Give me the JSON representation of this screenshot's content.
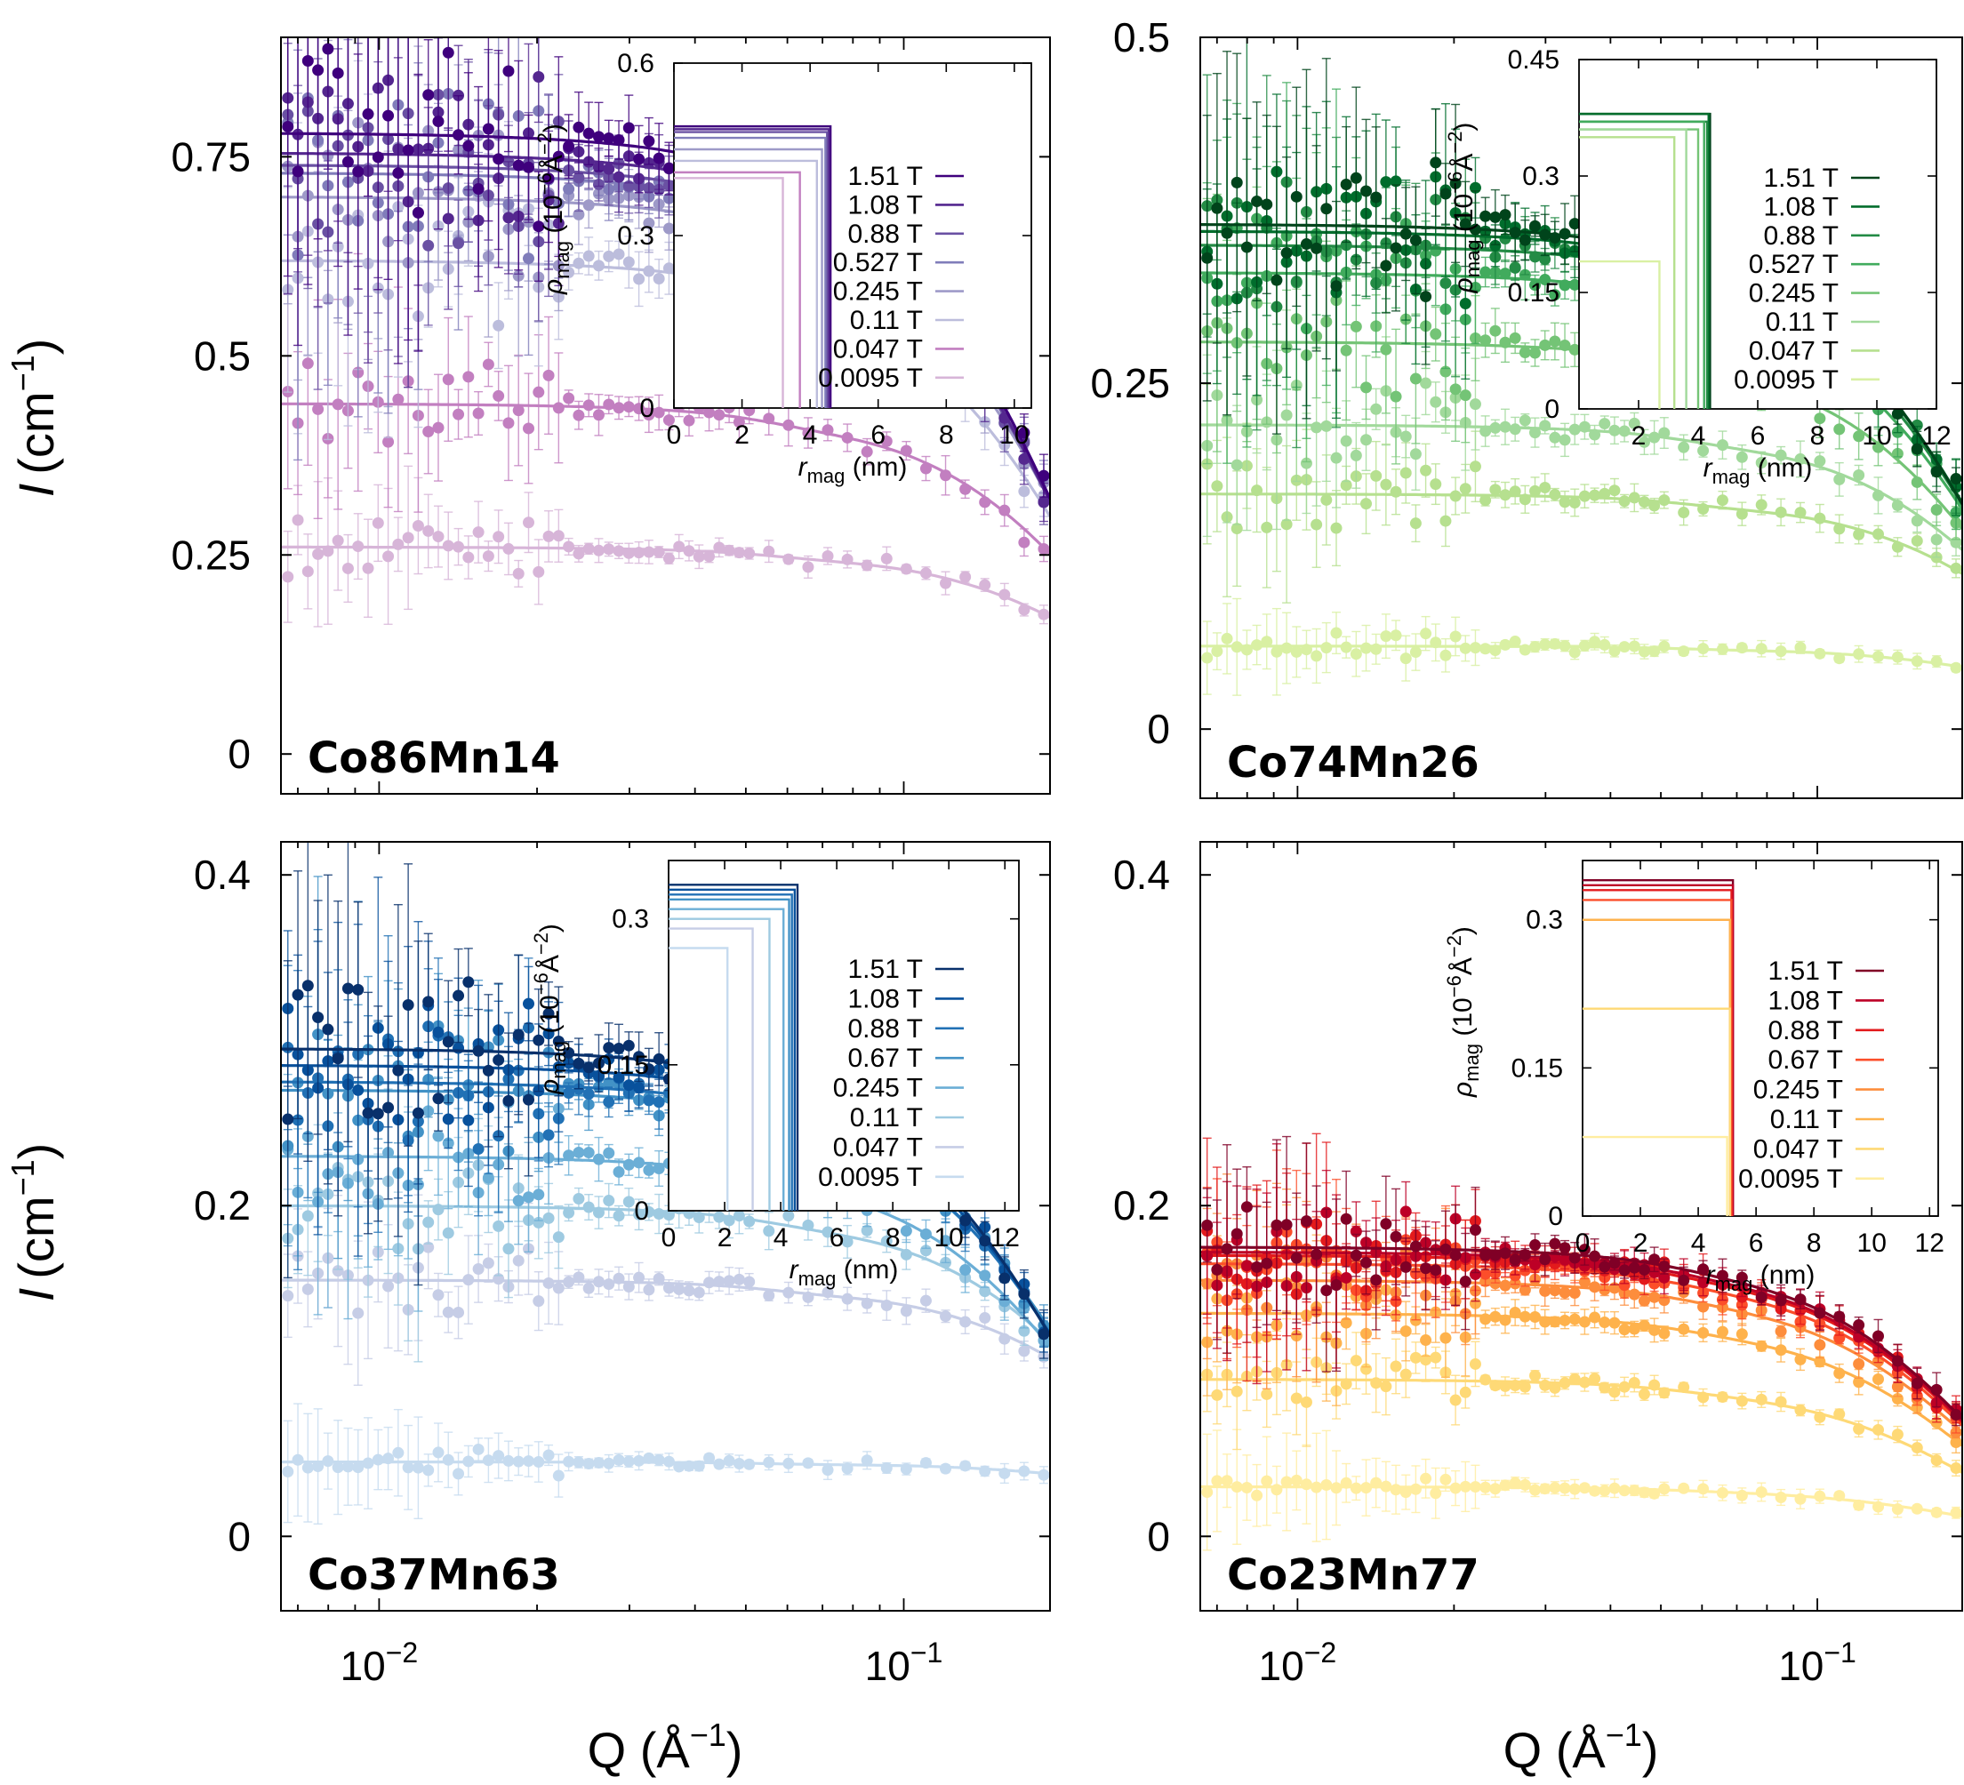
{
  "figure": {
    "y_axis_label": "I",
    "y_axis_unit": "(cm",
    "y_axis_unit_exp": "−1",
    "y_axis_unit_close": ")",
    "x_axis_label": "Q (Å",
    "x_axis_unit_exp": "−1",
    "x_axis_unit_close": ")",
    "inset_x_label": "r",
    "inset_x_sub": "mag",
    "inset_x_unit": " (nm)",
    "inset_y_label": "ρ",
    "inset_y_sub": "mag",
    "inset_y_unit": " (10",
    "inset_y_exp1": "−6",
    "inset_y_mid": "Å",
    "inset_y_exp2": "−2",
    "inset_y_close": ")"
  },
  "chart_data": [
    {
      "type": "scatter",
      "sample": "Co86Mn14",
      "sample_color": "#4b1b8c",
      "x_scale": "log",
      "xlim": [
        0.0065,
        0.19
      ],
      "ylim": [
        -0.05,
        0.9
      ],
      "y_ticks": [
        0,
        0.25,
        0.5,
        0.75
      ],
      "y_tick_labels": [
        "0",
        "0.25",
        "0.5",
        "0.75"
      ],
      "x_ticks": [],
      "series": [
        {
          "name": "1.51 T",
          "color": "#3f007d",
          "I0": 0.78,
          "rho": 0.49,
          "r": 4.6
        },
        {
          "name": "1.08 T",
          "color": "#54278f",
          "I0": 0.755,
          "rho": 0.485,
          "r": 4.55
        },
        {
          "name": "0.88 T",
          "color": "#6a51a3",
          "I0": 0.74,
          "rho": 0.48,
          "r": 4.5
        },
        {
          "name": "0.527 T",
          "color": "#807dba",
          "I0": 0.73,
          "rho": 0.47,
          "r": 4.45
        },
        {
          "name": "0.245 T",
          "color": "#9e9ac8",
          "I0": 0.7,
          "rho": 0.45,
          "r": 4.35
        },
        {
          "name": "0.11 T",
          "color": "#bcbddc",
          "I0": 0.62,
          "rho": 0.43,
          "r": 4.2
        },
        {
          "name": "0.047 T",
          "color": "#c27fc0",
          "I0": 0.44,
          "rho": 0.41,
          "r": 3.7
        },
        {
          "name": "0.0095 T",
          "color": "#d7b5d8",
          "I0": 0.26,
          "rho": 0.4,
          "r": 3.2
        }
      ],
      "inset": {
        "xlim": [
          0,
          10.5
        ],
        "ylim": [
          0,
          0.6
        ],
        "x_ticks": [
          0,
          2,
          4,
          6,
          8,
          10
        ],
        "x_tick_labels": [
          "0",
          "2",
          "4",
          "6",
          "8",
          "10"
        ],
        "y_ticks": [
          0,
          0.3,
          0.6
        ],
        "y_tick_labels": [
          "0",
          "0.3",
          "0.6"
        ]
      }
    },
    {
      "type": "scatter",
      "sample": "Co74Mn26",
      "sample_color": "#0b4d1f",
      "x_scale": "log",
      "xlim": [
        0.0065,
        0.19
      ],
      "ylim": [
        -0.05,
        0.5
      ],
      "y_ticks": [
        0,
        0.25,
        0.5
      ],
      "y_tick_labels": [
        "0",
        "0.25",
        "0.5"
      ],
      "x_ticks": [],
      "series": [
        {
          "name": "1.51 T",
          "color": "#00441b",
          "I0": 0.365,
          "rho": 0.38,
          "r": 4.4
        },
        {
          "name": "1.08 T",
          "color": "#006d2c",
          "I0": 0.36,
          "rho": 0.38,
          "r": 4.35
        },
        {
          "name": "0.88 T",
          "color": "#238b45",
          "I0": 0.35,
          "rho": 0.37,
          "r": 4.3
        },
        {
          "name": "0.527 T",
          "color": "#41ab5d",
          "I0": 0.33,
          "rho": 0.37,
          "r": 4.2
        },
        {
          "name": "0.245 T",
          "color": "#74c476",
          "I0": 0.28,
          "rho": 0.36,
          "r": 4.0
        },
        {
          "name": "0.11 T",
          "color": "#a1d99b",
          "I0": 0.22,
          "rho": 0.36,
          "r": 3.6
        },
        {
          "name": "0.047 T",
          "color": "#b6e08f",
          "I0": 0.17,
          "rho": 0.35,
          "r": 3.2
        },
        {
          "name": "0.0095 T",
          "color": "#d9f0a3",
          "I0": 0.06,
          "rho": 0.19,
          "r": 2.7
        }
      ],
      "inset": {
        "xlim": [
          0,
          12
        ],
        "ylim": [
          0,
          0.45
        ],
        "x_ticks": [
          2,
          4,
          6,
          8,
          10,
          12
        ],
        "x_tick_labels": [
          "2",
          "4",
          "6",
          "8",
          "10",
          "12"
        ],
        "y_ticks": [
          0,
          0.15,
          0.3,
          0.45
        ],
        "y_tick_labels": [
          "0",
          "0.15",
          "0.3",
          "0.45"
        ]
      }
    },
    {
      "type": "scatter",
      "sample": "Co37Mn63",
      "sample_color": "#0d3b5c",
      "x_scale": "log",
      "xlim": [
        0.0065,
        0.19
      ],
      "ylim": [
        -0.045,
        0.42
      ],
      "y_ticks": [
        0,
        0.2,
        0.4
      ],
      "y_tick_labels": [
        "0",
        "0.2",
        "0.4"
      ],
      "x_ticks": [
        0.01,
        0.1
      ],
      "series": [
        {
          "name": "1.51 T",
          "color": "#08306b",
          "I0": 0.295,
          "rho": 0.335,
          "r": 4.6
        },
        {
          "name": "1.08 T",
          "color": "#08519c",
          "I0": 0.285,
          "rho": 0.33,
          "r": 4.5
        },
        {
          "name": "0.88 T",
          "color": "#2171b5",
          "I0": 0.275,
          "rho": 0.325,
          "r": 4.4
        },
        {
          "name": "0.67 T",
          "color": "#4292c6",
          "I0": 0.27,
          "rho": 0.32,
          "r": 4.3
        },
        {
          "name": "0.245 T",
          "color": "#6baed6",
          "I0": 0.23,
          "rho": 0.31,
          "r": 4.1
        },
        {
          "name": "0.11 T",
          "color": "#9ecae1",
          "I0": 0.2,
          "rho": 0.3,
          "r": 3.6
        },
        {
          "name": "0.047 T",
          "color": "#c6cde6",
          "I0": 0.155,
          "rho": 0.29,
          "r": 3.0
        },
        {
          "name": "0.0095 T",
          "color": "#c6dbef",
          "I0": 0.045,
          "rho": 0.27,
          "r": 2.1
        }
      ],
      "inset": {
        "xlim": [
          0,
          12.5
        ],
        "ylim": [
          0,
          0.36
        ],
        "x_ticks": [
          0,
          2,
          4,
          6,
          8,
          10,
          12
        ],
        "x_tick_labels": [
          "0",
          "2",
          "4",
          "6",
          "8",
          "10",
          "12"
        ],
        "y_ticks": [
          0,
          0.15,
          0.3
        ],
        "y_tick_labels": [
          "0",
          "0.15",
          "0.3"
        ]
      }
    },
    {
      "type": "scatter",
      "sample": "Co23Mn77",
      "sample_color": "#c8100c",
      "x_scale": "log",
      "xlim": [
        0.0065,
        0.19
      ],
      "ylim": [
        -0.045,
        0.42
      ],
      "y_ticks": [
        0,
        0.2,
        0.4
      ],
      "y_tick_labels": [
        "0",
        "0.2",
        "0.4"
      ],
      "x_ticks": [
        0.01,
        0.1
      ],
      "series": [
        {
          "name": "1.51 T",
          "color": "#800026",
          "I0": 0.175,
          "rho": 0.34,
          "r": 5.2
        },
        {
          "name": "1.08 T",
          "color": "#bd0026",
          "I0": 0.172,
          "rho": 0.335,
          "r": 5.2
        },
        {
          "name": "0.88 T",
          "color": "#e31a1c",
          "I0": 0.17,
          "rho": 0.33,
          "r": 5.15
        },
        {
          "name": "0.67 T",
          "color": "#fc4e2a",
          "I0": 0.165,
          "rho": 0.32,
          "r": 5.15
        },
        {
          "name": "0.245 T",
          "color": "#fd8d3c",
          "I0": 0.155,
          "rho": 0.3,
          "r": 5.1
        },
        {
          "name": "0.11 T",
          "color": "#feb24c",
          "I0": 0.135,
          "rho": 0.3,
          "r": 5.1
        },
        {
          "name": "0.047 T",
          "color": "#fed976",
          "I0": 0.095,
          "rho": 0.21,
          "r": 5.1
        },
        {
          "name": "0.0095 T",
          "color": "#ffeda0",
          "I0": 0.03,
          "rho": 0.08,
          "r": 5.0
        }
      ],
      "inset": {
        "xlim": [
          0,
          12.3
        ],
        "ylim": [
          0,
          0.36
        ],
        "x_ticks": [
          0,
          2,
          4,
          6,
          8,
          10,
          12
        ],
        "x_tick_labels": [
          "0",
          "2",
          "4",
          "6",
          "8",
          "10",
          "12"
        ],
        "y_ticks": [
          0,
          0.15,
          0.3
        ],
        "y_tick_labels": [
          "0",
          "0.15",
          "0.3"
        ]
      }
    }
  ]
}
